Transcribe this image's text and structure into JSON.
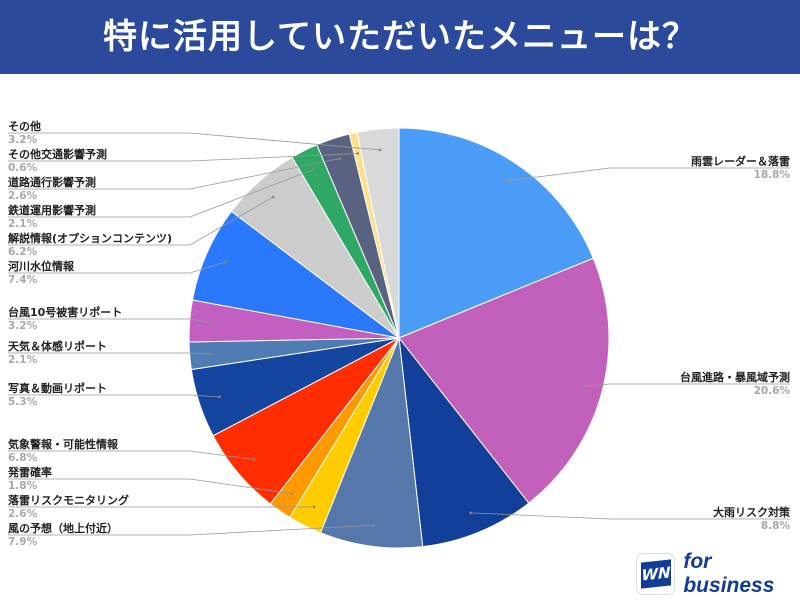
{
  "header": {
    "title": "特に活用していただいたメニューは？"
  },
  "logo": {
    "mark": "WN",
    "text": "for business"
  },
  "chart_data": {
    "type": "pie",
    "title": "特に活用していただいたメニューは？",
    "start_angle": "top, clockwise",
    "slices": [
      {
        "label": "雨雲レーダー＆落雷",
        "value": 18.8,
        "pct_label": "18.8%",
        "color": "#4a9cf7"
      },
      {
        "label": "台風進路・暴風域予測",
        "value": 20.6,
        "pct_label": "20.6%",
        "color": "#c261bc"
      },
      {
        "label": "大雨リスク対策",
        "value": 8.8,
        "pct_label": "8.8%",
        "color": "#113f9a"
      },
      {
        "label": "風の予想（地上付近）",
        "value": 7.9,
        "pct_label": "7.9%",
        "color": "#5577aa"
      },
      {
        "label": "落雷リスクモニタリング",
        "value": 2.6,
        "pct_label": "2.6%",
        "color": "#ffcc00"
      },
      {
        "label": "発雷確率",
        "value": 1.8,
        "pct_label": "1.8%",
        "color": "#ff9900"
      },
      {
        "label": "気象警報・可能性情報",
        "value": 6.8,
        "pct_label": "6.8%",
        "color": "#ff2d00"
      },
      {
        "label": "写真＆動画リポート",
        "value": 5.3,
        "pct_label": "5.3%",
        "color": "#1446a0"
      },
      {
        "label": "天気＆体感リポート",
        "value": 2.1,
        "pct_label": "2.1%",
        "color": "#4f7cb2"
      },
      {
        "label": "台風10号被害リポート",
        "value": 3.2,
        "pct_label": "3.2%",
        "color": "#c45fc2"
      },
      {
        "label": "河川水位情報",
        "value": 7.4,
        "pct_label": "7.4%",
        "color": "#2a78fc"
      },
      {
        "label": "解説情報(オプションコンテンツ)",
        "value": 6.2,
        "pct_label": "6.2%",
        "color": "#cccccc"
      },
      {
        "label": "鉄道運用影響予測",
        "value": 2.1,
        "pct_label": "2.1%",
        "color": "#2ea864"
      },
      {
        "label": "道路通行影響予測",
        "value": 2.6,
        "pct_label": "2.6%",
        "color": "#5a6282"
      },
      {
        "label": "その他交通影響予測",
        "value": 0.6,
        "pct_label": "0.6%",
        "color": "#fde08a"
      },
      {
        "label": "その他",
        "value": 3.2,
        "pct_label": "3.2%",
        "color": "#d9d9d9"
      }
    ],
    "legend": "leader-line labels"
  }
}
